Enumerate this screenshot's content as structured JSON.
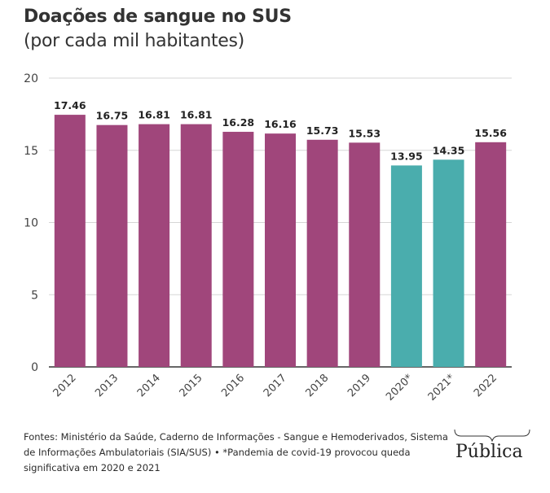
{
  "title": "Doações de sangue no SUS",
  "subtitle": "(por cada mil habitantes)",
  "footer": "Fontes: Ministério da Saúde, Caderno de Informações - Sangue e Hemoderivados, Sistema de Informações Ambulatoriais (SIA/SUS) • *Pandemia de covid-19 provocou queda significativa em 2020 e 2021",
  "logo": "Pública",
  "colors": {
    "primary": "#a0467b",
    "highlight": "#4aadad",
    "grid": "#d6d6d6",
    "axis": "#333333"
  },
  "chart_data": {
    "type": "bar",
    "title": "Doações de sangue no SUS",
    "subtitle": "(por cada mil habitantes)",
    "xlabel": "",
    "ylabel": "",
    "ylim": [
      0,
      20
    ],
    "yticks": [
      0,
      5,
      10,
      15,
      20
    ],
    "grid": true,
    "categories": [
      "2012",
      "2013",
      "2014",
      "2015",
      "2016",
      "2017",
      "2018",
      "2019",
      "2020*",
      "2021*",
      "2022"
    ],
    "values": [
      17.46,
      16.75,
      16.81,
      16.81,
      16.28,
      16.16,
      15.73,
      15.53,
      13.95,
      14.35,
      15.56
    ],
    "value_labels": [
      "17.46",
      "16.75",
      "16.81",
      "16.81",
      "16.28",
      "16.16",
      "15.73",
      "15.53",
      "13.95",
      "14.35",
      "15.56"
    ],
    "highlighted": [
      false,
      false,
      false,
      false,
      false,
      false,
      false,
      false,
      true,
      true,
      false
    ]
  }
}
